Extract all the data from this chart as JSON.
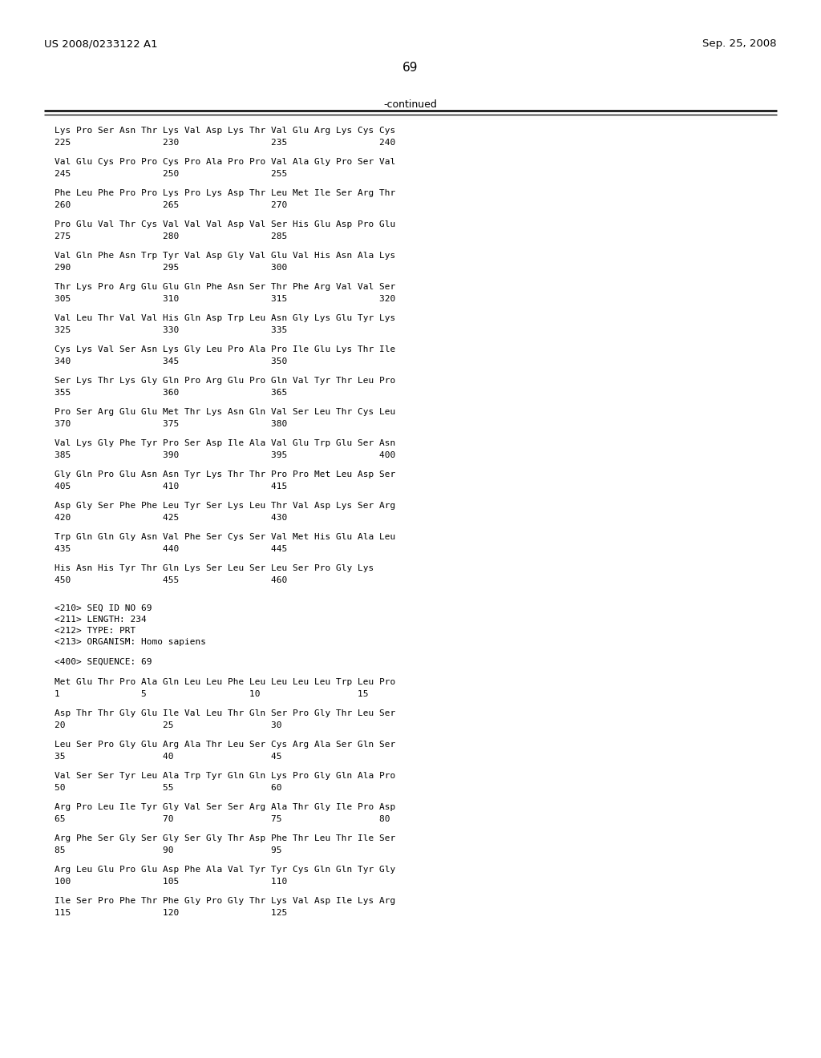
{
  "background_color": "#ffffff",
  "text_color": "#000000",
  "header_left": "US 2008/0233122 A1",
  "header_right": "Sep. 25, 2008",
  "page_number": "69",
  "continued_label": "-continued",
  "body_lines": [
    {
      "type": "seq",
      "text": "Lys Pro Ser Asn Thr Lys Val Asp Lys Thr Val Glu Arg Lys Cys Cys"
    },
    {
      "type": "num",
      "text": "225                 230                 235                 240"
    },
    {
      "type": "blank"
    },
    {
      "type": "seq",
      "text": "Val Glu Cys Pro Pro Cys Pro Ala Pro Pro Val Ala Gly Pro Ser Val"
    },
    {
      "type": "num",
      "text": "245                 250                 255"
    },
    {
      "type": "blank"
    },
    {
      "type": "seq",
      "text": "Phe Leu Phe Pro Pro Lys Pro Lys Asp Thr Leu Met Ile Ser Arg Thr"
    },
    {
      "type": "num",
      "text": "260                 265                 270"
    },
    {
      "type": "blank"
    },
    {
      "type": "seq",
      "text": "Pro Glu Val Thr Cys Val Val Val Asp Val Ser His Glu Asp Pro Glu"
    },
    {
      "type": "num",
      "text": "275                 280                 285"
    },
    {
      "type": "blank"
    },
    {
      "type": "seq",
      "text": "Val Gln Phe Asn Trp Tyr Val Asp Gly Val Glu Val His Asn Ala Lys"
    },
    {
      "type": "num",
      "text": "290                 295                 300"
    },
    {
      "type": "blank"
    },
    {
      "type": "seq",
      "text": "Thr Lys Pro Arg Glu Glu Gln Phe Asn Ser Thr Phe Arg Val Val Ser"
    },
    {
      "type": "num",
      "text": "305                 310                 315                 320"
    },
    {
      "type": "blank"
    },
    {
      "type": "seq",
      "text": "Val Leu Thr Val Val His Gln Asp Trp Leu Asn Gly Lys Glu Tyr Lys"
    },
    {
      "type": "num",
      "text": "325                 330                 335"
    },
    {
      "type": "blank"
    },
    {
      "type": "seq",
      "text": "Cys Lys Val Ser Asn Lys Gly Leu Pro Ala Pro Ile Glu Lys Thr Ile"
    },
    {
      "type": "num",
      "text": "340                 345                 350"
    },
    {
      "type": "blank"
    },
    {
      "type": "seq",
      "text": "Ser Lys Thr Lys Gly Gln Pro Arg Glu Pro Gln Val Tyr Thr Leu Pro"
    },
    {
      "type": "num",
      "text": "355                 360                 365"
    },
    {
      "type": "blank"
    },
    {
      "type": "seq",
      "text": "Pro Ser Arg Glu Glu Met Thr Lys Asn Gln Val Ser Leu Thr Cys Leu"
    },
    {
      "type": "num",
      "text": "370                 375                 380"
    },
    {
      "type": "blank"
    },
    {
      "type": "seq",
      "text": "Val Lys Gly Phe Tyr Pro Ser Asp Ile Ala Val Glu Trp Glu Ser Asn"
    },
    {
      "type": "num",
      "text": "385                 390                 395                 400"
    },
    {
      "type": "blank"
    },
    {
      "type": "seq",
      "text": "Gly Gln Pro Glu Asn Asn Tyr Lys Thr Thr Pro Pro Met Leu Asp Ser"
    },
    {
      "type": "num",
      "text": "405                 410                 415"
    },
    {
      "type": "blank"
    },
    {
      "type": "seq",
      "text": "Asp Gly Ser Phe Phe Leu Tyr Ser Lys Leu Thr Val Asp Lys Ser Arg"
    },
    {
      "type": "num",
      "text": "420                 425                 430"
    },
    {
      "type": "blank"
    },
    {
      "type": "seq",
      "text": "Trp Gln Gln Gly Asn Val Phe Ser Cys Ser Val Met His Glu Ala Leu"
    },
    {
      "type": "num",
      "text": "435                 440                 445"
    },
    {
      "type": "blank"
    },
    {
      "type": "seq",
      "text": "His Asn His Tyr Thr Gln Lys Ser Leu Ser Leu Ser Pro Gly Lys"
    },
    {
      "type": "num",
      "text": "450                 455                 460"
    },
    {
      "type": "blank"
    },
    {
      "type": "blank"
    },
    {
      "type": "meta",
      "text": "<210> SEQ ID NO 69"
    },
    {
      "type": "meta",
      "text": "<211> LENGTH: 234"
    },
    {
      "type": "meta",
      "text": "<212> TYPE: PRT"
    },
    {
      "type": "meta",
      "text": "<213> ORGANISM: Homo sapiens"
    },
    {
      "type": "blank"
    },
    {
      "type": "meta",
      "text": "<400> SEQUENCE: 69"
    },
    {
      "type": "blank"
    },
    {
      "type": "seq",
      "text": "Met Glu Thr Pro Ala Gln Leu Leu Phe Leu Leu Leu Leu Trp Leu Pro"
    },
    {
      "type": "num",
      "text": "1               5                   10                  15"
    },
    {
      "type": "blank"
    },
    {
      "type": "seq",
      "text": "Asp Thr Thr Gly Glu Ile Val Leu Thr Gln Ser Pro Gly Thr Leu Ser"
    },
    {
      "type": "num",
      "text": "20                  25                  30"
    },
    {
      "type": "blank"
    },
    {
      "type": "seq",
      "text": "Leu Ser Pro Gly Glu Arg Ala Thr Leu Ser Cys Arg Ala Ser Gln Ser"
    },
    {
      "type": "num",
      "text": "35                  40                  45"
    },
    {
      "type": "blank"
    },
    {
      "type": "seq",
      "text": "Val Ser Ser Tyr Leu Ala Trp Tyr Gln Gln Lys Pro Gly Gln Ala Pro"
    },
    {
      "type": "num",
      "text": "50                  55                  60"
    },
    {
      "type": "blank"
    },
    {
      "type": "seq",
      "text": "Arg Pro Leu Ile Tyr Gly Val Ser Ser Arg Ala Thr Gly Ile Pro Asp"
    },
    {
      "type": "num",
      "text": "65                  70                  75                  80"
    },
    {
      "type": "blank"
    },
    {
      "type": "seq",
      "text": "Arg Phe Ser Gly Ser Gly Ser Gly Thr Asp Phe Thr Leu Thr Ile Ser"
    },
    {
      "type": "num",
      "text": "85                  90                  95"
    },
    {
      "type": "blank"
    },
    {
      "type": "seq",
      "text": "Arg Leu Glu Pro Glu Asp Phe Ala Val Tyr Tyr Cys Gln Gln Tyr Gly"
    },
    {
      "type": "num",
      "text": "100                 105                 110"
    },
    {
      "type": "blank"
    },
    {
      "type": "seq",
      "text": "Ile Ser Pro Phe Thr Phe Gly Pro Gly Thr Lys Val Asp Ile Lys Arg"
    },
    {
      "type": "num",
      "text": "115                 120                 125"
    }
  ]
}
